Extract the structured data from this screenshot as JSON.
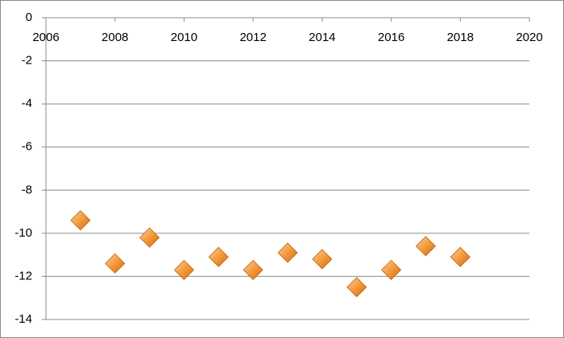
{
  "chart_data": {
    "type": "scatter",
    "x": [
      2007,
      2008,
      2009,
      2010,
      2011,
      2012,
      2013,
      2014,
      2015,
      2016,
      2017,
      2018
    ],
    "values": [
      -9.4,
      -11.4,
      -10.2,
      -11.7,
      -11.1,
      -11.7,
      -10.9,
      -11.2,
      -12.5,
      -11.7,
      -10.6,
      -11.1
    ],
    "color": "#f08c2a",
    "xlim": [
      2006,
      2020
    ],
    "xticks": [
      2006,
      2008,
      2010,
      2012,
      2014,
      2016,
      2018,
      2020
    ],
    "ylim": [
      -14,
      0
    ],
    "yticks": [
      0,
      -2,
      -4,
      -6,
      -8,
      -10,
      -12,
      -14
    ],
    "grid": true
  }
}
